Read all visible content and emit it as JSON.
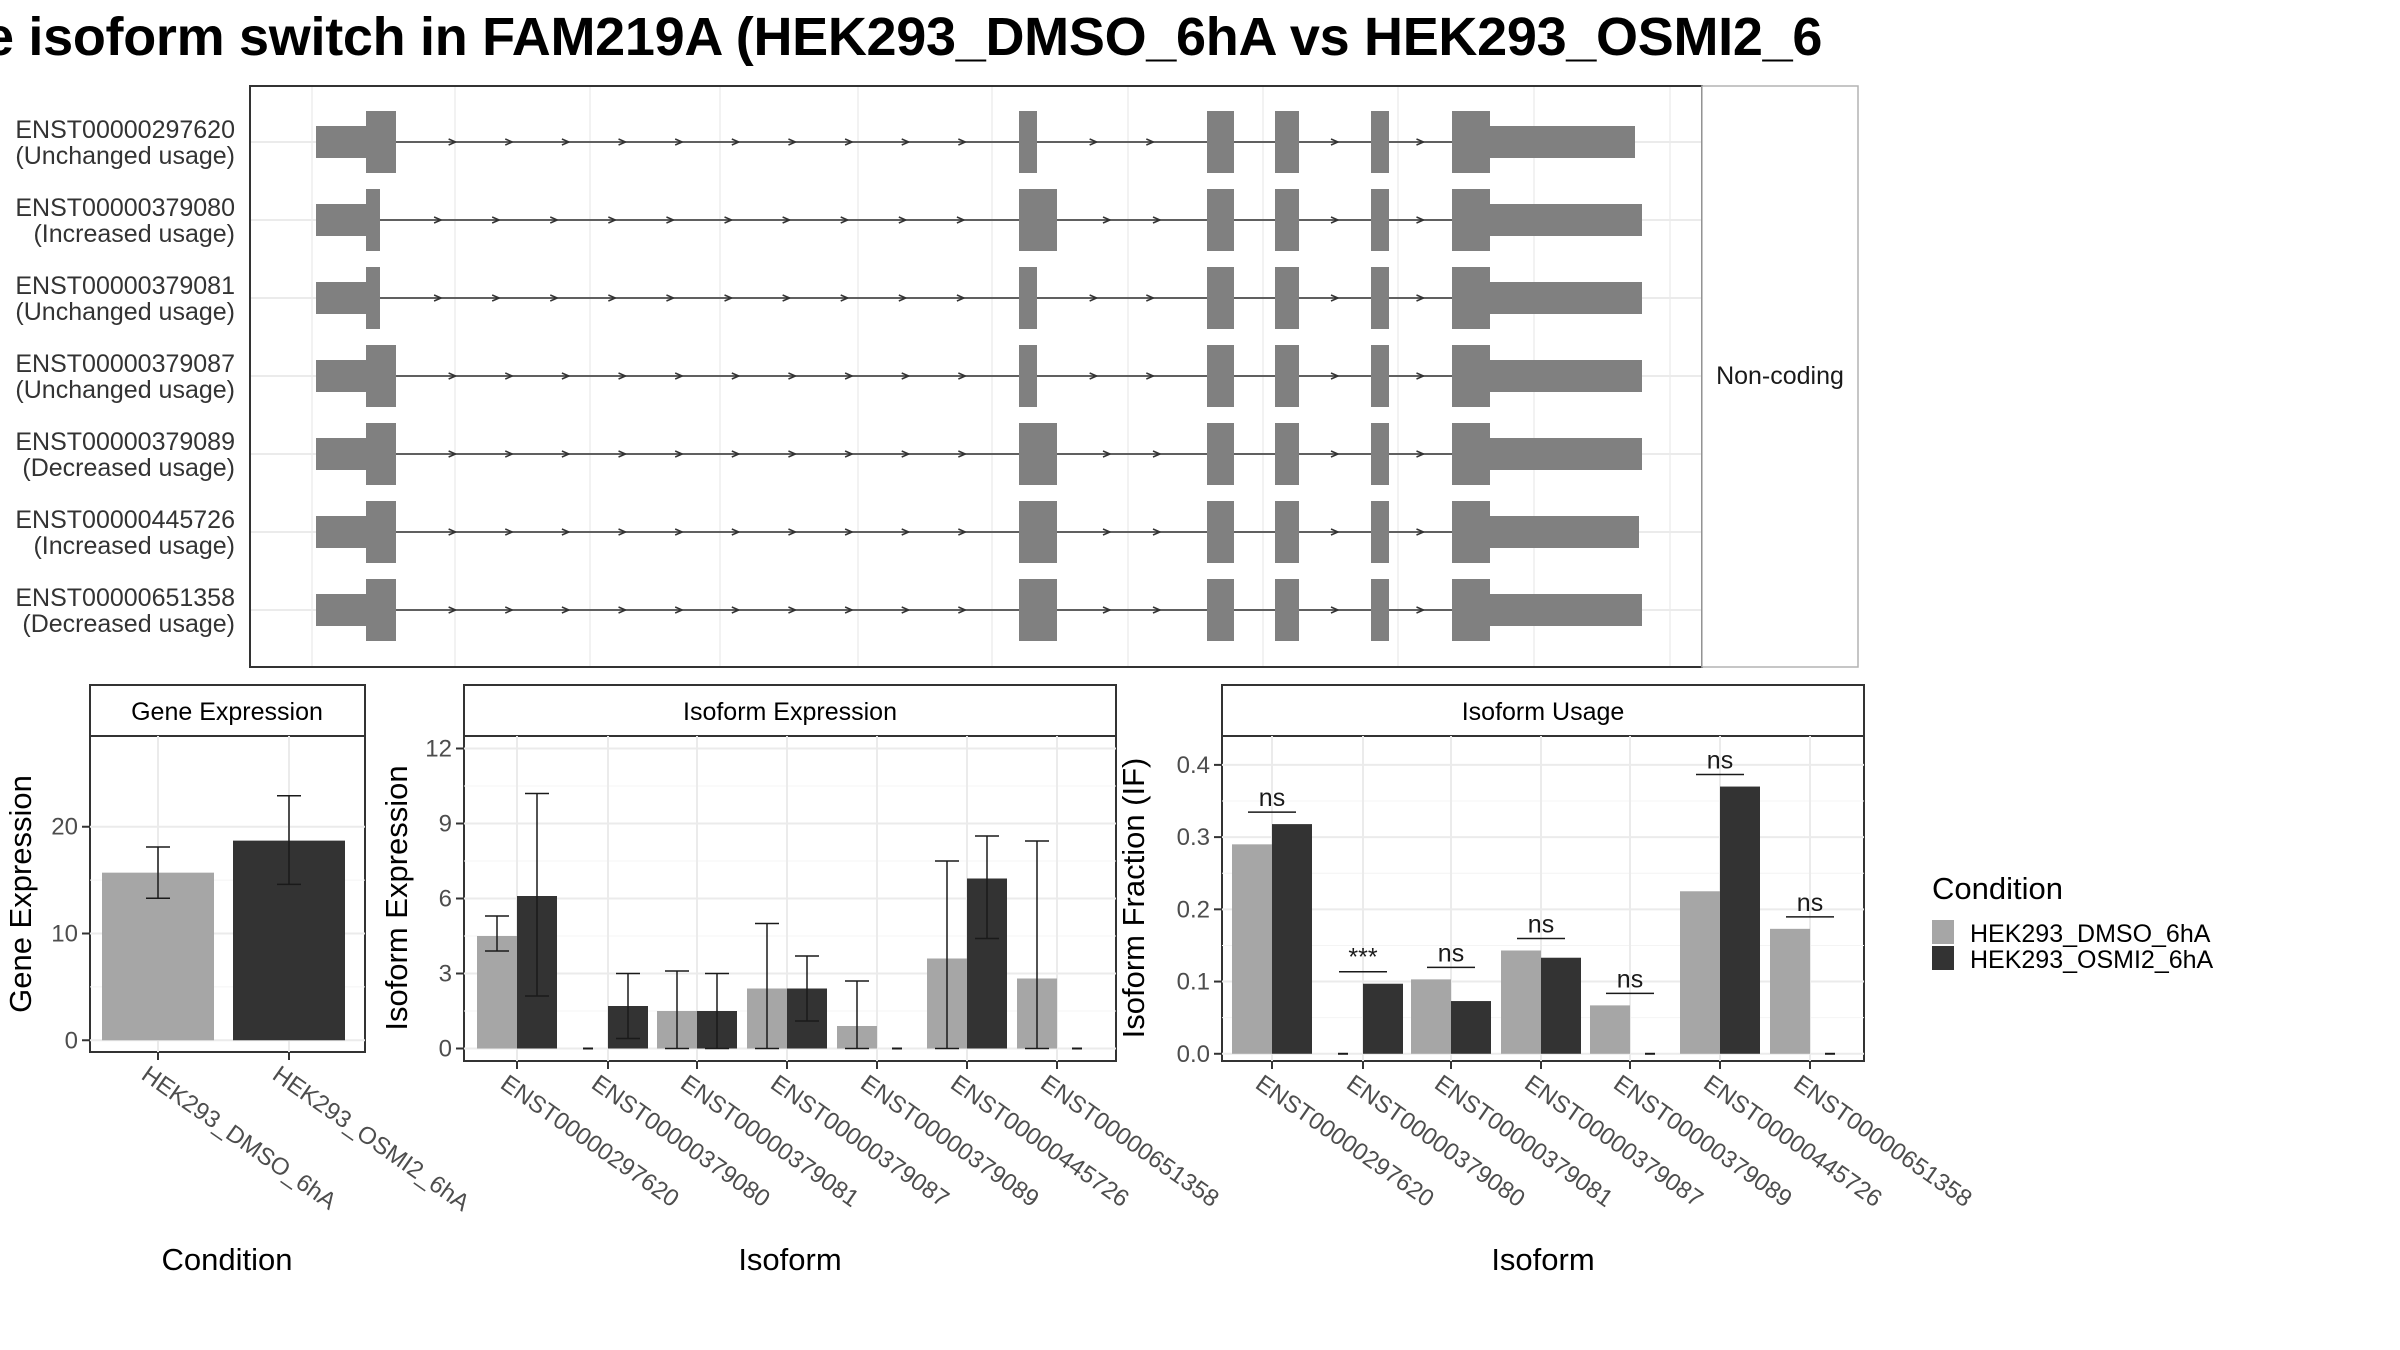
{
  "title": "e isoform switch in FAM219A (HEK293_DMSO_6hA vs HEK293_OSMI2_6",
  "colors": {
    "dmso": "#a6a6a6",
    "osmi": "#333333",
    "exon": "#808080",
    "grid": "#ebebeb",
    "strip": "#ffffff"
  },
  "chart_data": [
    {
      "type": "gene-structure",
      "facet_label": "Non-coding",
      "transcripts": [
        {
          "id": "ENST00000297620",
          "usage": "(Unchanged usage)"
        },
        {
          "id": "ENST00000379080",
          "usage": "(Increased usage)"
        },
        {
          "id": "ENST00000379081",
          "usage": "(Unchanged usage)"
        },
        {
          "id": "ENST00000379087",
          "usage": "(Unchanged usage)"
        },
        {
          "id": "ENST00000379089",
          "usage": "(Decreased usage)"
        },
        {
          "id": "ENST00000445726",
          "usage": "(Increased usage)"
        },
        {
          "id": "ENST00000651358",
          "usage": "(Decreased usage)"
        }
      ]
    },
    {
      "type": "bar",
      "title": "Gene Expression",
      "xlabel": "Condition",
      "ylabel": "Gene Expression",
      "categories": [
        "HEK293_DMSO_6hA",
        "HEK293_OSMI2_6hA"
      ],
      "values": [
        15.7,
        18.7
      ],
      "error": [
        [
          13.3,
          18.1
        ],
        [
          14.6,
          22.9
        ]
      ],
      "yticks": [
        0,
        10,
        20
      ],
      "ylim": [
        -1.1,
        28.5
      ],
      "grid": true
    },
    {
      "type": "bar",
      "title": "Isoform Expression",
      "xlabel": "Isoform",
      "ylabel": "Isoform Expression",
      "categories": [
        "ENST00000297620",
        "ENST00000379080",
        "ENST00000379081",
        "ENST00000379087",
        "ENST00000379089",
        "ENST00000445726",
        "ENST00000651358"
      ],
      "series": [
        {
          "name": "HEK293_DMSO_6hA",
          "values": [
            4.5,
            0,
            1.5,
            2.4,
            0.9,
            3.6,
            2.8
          ],
          "error": [
            [
              3.9,
              5.3
            ],
            [
              0,
              0
            ],
            [
              0,
              3.1
            ],
            [
              0,
              5.0
            ],
            [
              0,
              2.7
            ],
            [
              0,
              7.5
            ],
            [
              0,
              8.3
            ]
          ]
        },
        {
          "name": "HEK293_OSMI2_6hA",
          "values": [
            6.1,
            1.7,
            1.5,
            2.4,
            0,
            6.8,
            0
          ],
          "error": [
            [
              2.1,
              10.2
            ],
            [
              0.4,
              3.0
            ],
            [
              0,
              3.0
            ],
            [
              1.1,
              3.7
            ],
            [
              0,
              0
            ],
            [
              4.4,
              8.5
            ],
            [
              0,
              0
            ]
          ]
        }
      ],
      "yticks": [
        0,
        3,
        6,
        9,
        12
      ],
      "ylim": [
        -0.5,
        12.5
      ],
      "grid": true
    },
    {
      "type": "bar",
      "title": "Isoform Usage",
      "xlabel": "Isoform",
      "ylabel": "Isoform Fraction (IF)",
      "categories": [
        "ENST00000297620",
        "ENST00000379080",
        "ENST00000379081",
        "ENST00000379087",
        "ENST00000379089",
        "ENST00000445726",
        "ENST00000651358"
      ],
      "series": [
        {
          "name": "HEK293_DMSO_6hA",
          "values": [
            0.29,
            0,
            0.103,
            0.143,
            0.067,
            0.225,
            0.173
          ]
        },
        {
          "name": "HEK293_OSMI2_6hA",
          "values": [
            0.318,
            0.097,
            0.073,
            0.133,
            0,
            0.37,
            0
          ]
        }
      ],
      "significance": [
        "ns",
        "***",
        "ns",
        "ns",
        "ns",
        "ns",
        "ns"
      ],
      "yticks": [
        0.0,
        0.1,
        0.2,
        0.3,
        0.4
      ],
      "ytick_labels": [
        "0.0",
        "0.1",
        "0.2",
        "0.3",
        "0.4"
      ],
      "ylim": [
        -0.01,
        0.44
      ],
      "grid": true
    }
  ],
  "legend": {
    "title": "Condition",
    "placement": "right",
    "items": [
      "HEK293_DMSO_6hA",
      "HEK293_OSMI2_6hA"
    ]
  }
}
